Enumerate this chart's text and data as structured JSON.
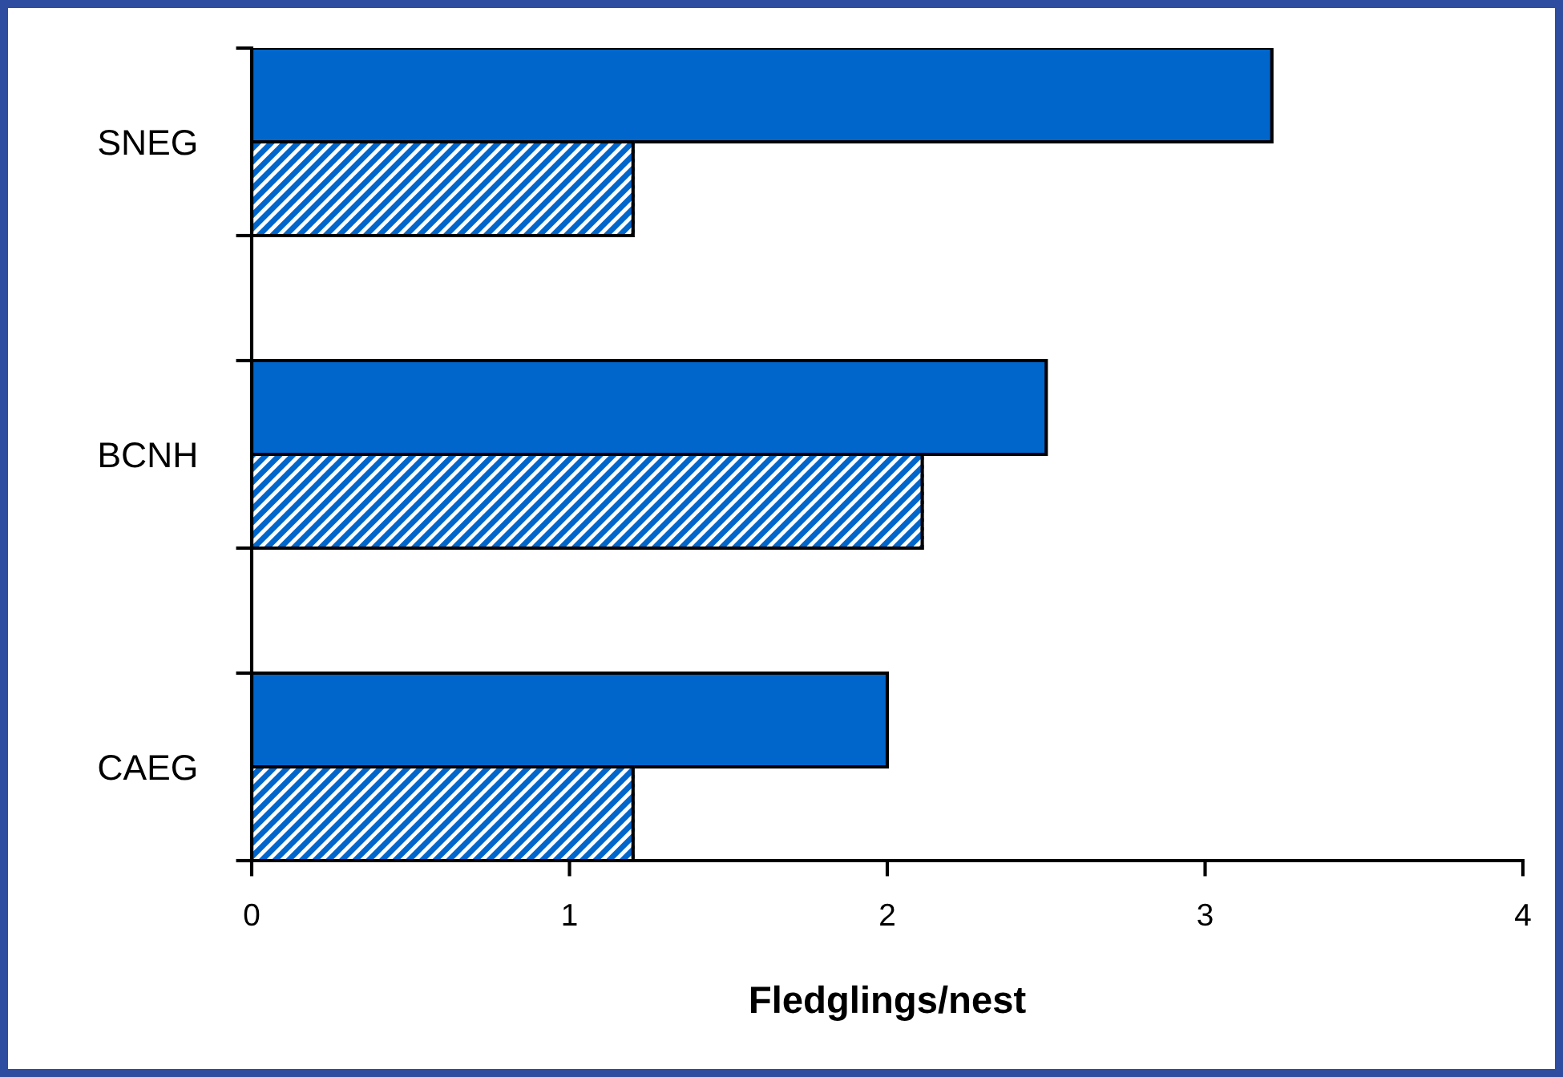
{
  "chart_data": {
    "type": "bar",
    "orientation": "horizontal",
    "xlabel": "Fledglings/nest",
    "categories": [
      "SNEG",
      "BCNH",
      "CAEG"
    ],
    "series": [
      {
        "color": "#0066cc",
        "values": [
          3.21,
          2.5,
          2.0
        ]
      },
      {
        "color": "#0066cc",
        "line_style": "dotted",
        "values": [
          1.2,
          2.11,
          1.2
        ]
      }
    ],
    "xlim": [
      0,
      4
    ],
    "xticks": [
      0,
      1,
      2,
      3,
      4
    ]
  }
}
